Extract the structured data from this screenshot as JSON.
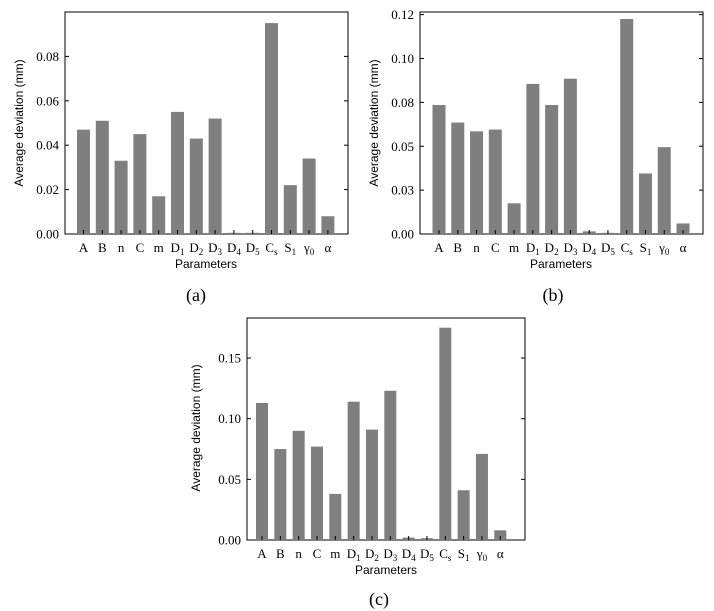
{
  "figure": {
    "panels": [
      "(a)",
      "(b)",
      "(c)"
    ]
  },
  "chart_data": [
    {
      "type": "bar",
      "panel_label": "(a)",
      "xlabel": "Parameters",
      "ylabel": "Average deviation (mm)",
      "categories": [
        "A",
        "B",
        "n",
        "C",
        "m",
        "D1",
        "D2",
        "D3",
        "D4",
        "D5",
        "Cs",
        "S1",
        "γ0",
        "α"
      ],
      "category_labels": [
        {
          "base": "A",
          "sub": ""
        },
        {
          "base": "B",
          "sub": ""
        },
        {
          "base": "n",
          "sub": ""
        },
        {
          "base": "C",
          "sub": ""
        },
        {
          "base": "m",
          "sub": ""
        },
        {
          "base": "D",
          "sub": "1"
        },
        {
          "base": "D",
          "sub": "2"
        },
        {
          "base": "D",
          "sub": "3"
        },
        {
          "base": "D",
          "sub": "4"
        },
        {
          "base": "D",
          "sub": "5"
        },
        {
          "base": "C",
          "sub": "s"
        },
        {
          "base": "S",
          "sub": "1"
        },
        {
          "base": "γ",
          "sub": "0"
        },
        {
          "base": "α",
          "sub": ""
        }
      ],
      "values": [
        0.047,
        0.051,
        0.033,
        0.045,
        0.017,
        0.055,
        0.043,
        0.052,
        0.0003,
        0.0003,
        0.095,
        0.022,
        0.034,
        0.008
      ],
      "ylim": [
        0,
        0.1
      ],
      "yticks": [
        0.0,
        0.02,
        0.04,
        0.06,
        0.08
      ],
      "ytick_labels": [
        "0.00",
        "0.02",
        "0.04",
        "0.06",
        "0.08"
      ]
    },
    {
      "type": "bar",
      "panel_label": "(b)",
      "xlabel": "Parameters",
      "ylabel": "Average deviation (mm)",
      "categories": [
        "A",
        "B",
        "n",
        "C",
        "m",
        "D1",
        "D2",
        "D3",
        "D4",
        "D5",
        "Cs",
        "S1",
        "γ0",
        "α"
      ],
      "category_labels": [
        {
          "base": "A",
          "sub": ""
        },
        {
          "base": "B",
          "sub": ""
        },
        {
          "base": "n",
          "sub": ""
        },
        {
          "base": "C",
          "sub": ""
        },
        {
          "base": "m",
          "sub": ""
        },
        {
          "base": "D",
          "sub": "1"
        },
        {
          "base": "D",
          "sub": "2"
        },
        {
          "base": "D",
          "sub": "3"
        },
        {
          "base": "D",
          "sub": "4"
        },
        {
          "base": "D",
          "sub": "5"
        },
        {
          "base": "C",
          "sub": "s"
        },
        {
          "base": "S",
          "sub": "1"
        },
        {
          "base": "γ",
          "sub": "0"
        },
        {
          "base": "α",
          "sub": ""
        }
      ],
      "values": [
        0.0735,
        0.0635,
        0.0585,
        0.0595,
        0.0175,
        0.0855,
        0.0735,
        0.0885,
        0.0015,
        0.0003,
        0.1225,
        0.0345,
        0.0495,
        0.006
      ],
      "ylim": [
        0,
        0.1265
      ],
      "yticks": [
        0.0,
        0.025,
        0.05,
        0.075,
        0.1,
        0.125
      ],
      "ytick_labels": [
        "0.00",
        "0.03",
        "0.05",
        "0.08",
        "0.10",
        "0.12"
      ]
    },
    {
      "type": "bar",
      "panel_label": "(c)",
      "xlabel": "Parameters",
      "ylabel": "Average deviation (mm)",
      "categories": [
        "A",
        "B",
        "n",
        "C",
        "m",
        "D1",
        "D2",
        "D3",
        "D4",
        "D5",
        "Cs",
        "S1",
        "γ0",
        "α"
      ],
      "category_labels": [
        {
          "base": "A",
          "sub": ""
        },
        {
          "base": "B",
          "sub": ""
        },
        {
          "base": "n",
          "sub": ""
        },
        {
          "base": "C",
          "sub": ""
        },
        {
          "base": "m",
          "sub": ""
        },
        {
          "base": "D",
          "sub": "1"
        },
        {
          "base": "D",
          "sub": "2"
        },
        {
          "base": "D",
          "sub": "3"
        },
        {
          "base": "D",
          "sub": "4"
        },
        {
          "base": "D",
          "sub": "5"
        },
        {
          "base": "C",
          "sub": "s"
        },
        {
          "base": "S",
          "sub": "1"
        },
        {
          "base": "γ",
          "sub": "0"
        },
        {
          "base": "α",
          "sub": ""
        }
      ],
      "values": [
        0.113,
        0.075,
        0.09,
        0.077,
        0.038,
        0.114,
        0.091,
        0.123,
        0.002,
        0.0015,
        0.175,
        0.041,
        0.071,
        0.008
      ],
      "ylim": [
        0,
        0.183
      ],
      "yticks": [
        0.0,
        0.05,
        0.1,
        0.15
      ],
      "ytick_labels": [
        "0.00",
        "0.05",
        "0.10",
        "0.15"
      ]
    }
  ],
  "colors": {
    "bar": "#7f7f7f",
    "axis": "#000000",
    "background": "#ffffff"
  }
}
